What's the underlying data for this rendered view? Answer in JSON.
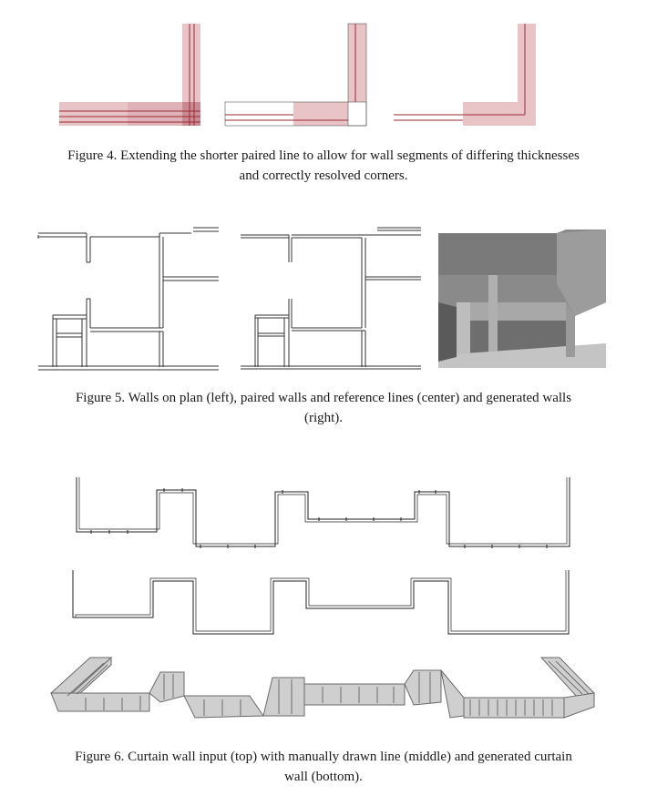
{
  "figure4": {
    "caption_line1": "Figure 4. Extending the shorter paired line to allow for wall segments of differing thicknesses",
    "caption_line2": "and correctly resolved corners."
  },
  "figure5": {
    "caption_line1": "Figure 5. Walls on plan (left), paired walls and reference lines (center) and generated walls",
    "caption_line2": "(right)."
  },
  "figure6": {
    "caption_line1": "Figure 6. Curtain wall input (top) with manually drawn line (middle) and generated curtain",
    "caption_line2": "wall (bottom)."
  },
  "colors": {
    "wall_fill": "#e8c4c7",
    "wall_fill_dark": "#d49aa0",
    "wall_line": "#9a2a33",
    "wall_solid": "#8c8c8c",
    "line": "#333333"
  }
}
